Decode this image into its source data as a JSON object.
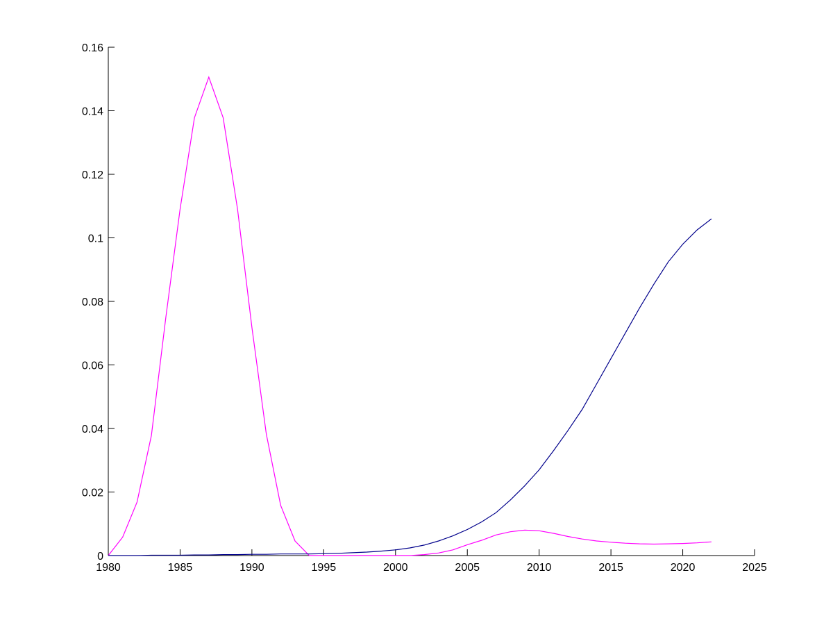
{
  "chart_data": {
    "type": "line",
    "title": "",
    "xlabel": "",
    "ylabel": "",
    "xlim": [
      1980,
      2025
    ],
    "ylim": [
      0,
      0.16
    ],
    "grid": false,
    "x_ticks": [
      "1980",
      "1985",
      "1990",
      "1995",
      "2000",
      "2005",
      "2010",
      "2015",
      "2020",
      "2025"
    ],
    "y_ticks": [
      "0",
      "0.02",
      "0.04",
      "0.06",
      "0.08",
      "0.1",
      "0.12",
      "0.14",
      "0.16"
    ],
    "series": [
      {
        "color": "#ff00ff",
        "x": [
          1980,
          1981,
          1982,
          1983,
          1984,
          1985,
          1986,
          1987,
          1988,
          1989,
          1990,
          1991,
          1992,
          1993,
          1994,
          1995,
          1996,
          1997,
          1998,
          1999,
          2000,
          2001,
          2002,
          2003,
          2004,
          2005,
          2006,
          2007,
          2008,
          2009,
          2010,
          2011,
          2012,
          2013,
          2014,
          2015,
          2016,
          2017,
          2018,
          2019,
          2020,
          2021,
          2022
        ],
        "y": [
          0,
          0.0058,
          0.0168,
          0.0378,
          0.0748,
          0.109,
          0.1378,
          0.1506,
          0.1378,
          0.109,
          0.0718,
          0.0383,
          0.0158,
          0.0046,
          0,
          0,
          0,
          0,
          0,
          0,
          0,
          0,
          0.0003,
          0.0008,
          0.0018,
          0.0034,
          0.0048,
          0.0065,
          0.0075,
          0.008,
          0.0078,
          0.007,
          0.006,
          0.0052,
          0.0046,
          0.0042,
          0.0039,
          0.0037,
          0.0036,
          0.0037,
          0.0038,
          0.004,
          0.0043
        ]
      },
      {
        "color": "#00008b",
        "x": [
          1980,
          1981,
          1982,
          1983,
          1984,
          1985,
          1986,
          1987,
          1988,
          1989,
          1990,
          1991,
          1992,
          1993,
          1994,
          1995,
          1996,
          1997,
          1998,
          1999,
          2000,
          2001,
          2002,
          2003,
          2004,
          2005,
          2006,
          2007,
          2008,
          2009,
          2010,
          2011,
          2012,
          2013,
          2014,
          2015,
          2016,
          2017,
          2018,
          2019,
          2020,
          2021,
          2022
        ],
        "y": [
          0,
          0,
          0,
          0.0001,
          0.0001,
          0.0001,
          0.0002,
          0.0002,
          0.0003,
          0.0003,
          0.0004,
          0.0004,
          0.0005,
          0.0005,
          0.0005,
          0.0006,
          0.0007,
          0.0009,
          0.0011,
          0.0014,
          0.0018,
          0.0024,
          0.0033,
          0.0046,
          0.0062,
          0.0082,
          0.0106,
          0.0135,
          0.0175,
          0.022,
          0.027,
          0.033,
          0.0393,
          0.046,
          0.054,
          0.062,
          0.07,
          0.078,
          0.0855,
          0.0925,
          0.098,
          0.1025,
          0.106
        ]
      }
    ]
  }
}
